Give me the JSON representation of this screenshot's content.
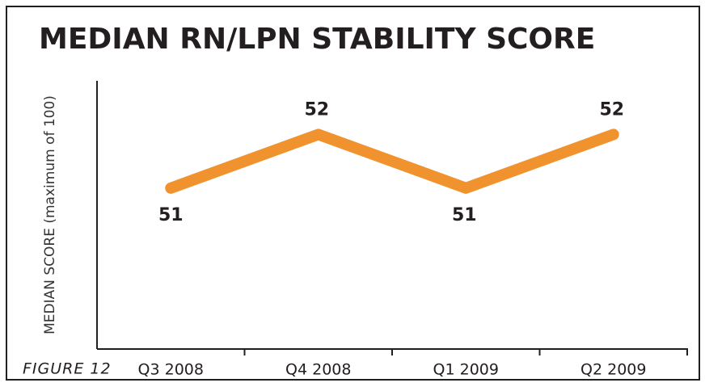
{
  "chart_data": {
    "type": "line",
    "title": "MEDIAN RN/LPN STABILITY SCORE",
    "y_label": "MEDIAN SCORE (maximum of 100)",
    "caption": "FIGURE 12",
    "categories": [
      "Q3 2008",
      "Q4 2008",
      "Q1 2009",
      "Q2 2009"
    ],
    "series": [
      {
        "name": "Median RN/LPN stability score",
        "color": "#f0922e",
        "values": [
          51,
          52,
          51,
          52
        ]
      }
    ],
    "ylim": [
      48,
      53
    ]
  }
}
